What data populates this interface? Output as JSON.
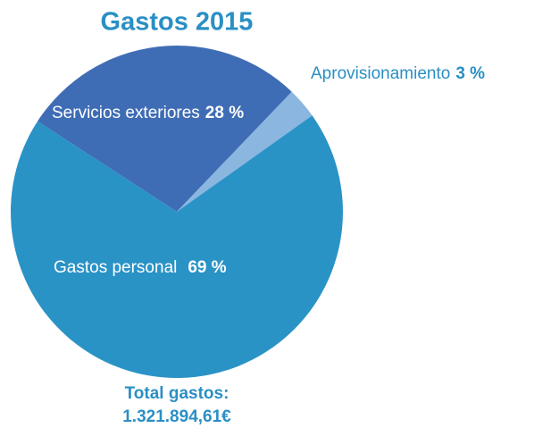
{
  "chart_data": {
    "type": "pie",
    "title": "Gastos 2015",
    "categories": [
      "Servicios exteriores",
      "Aprovisionamiento",
      "Gastos personal"
    ],
    "values": [
      28,
      3,
      69
    ],
    "value_labels": [
      "28 %",
      "3 %",
      "69 %"
    ],
    "colors": [
      "#3f6db5",
      "#8ab6e0",
      "#2a93c6"
    ],
    "annotations": [
      "Total gastos:",
      "1.321.894,61€"
    ]
  }
}
